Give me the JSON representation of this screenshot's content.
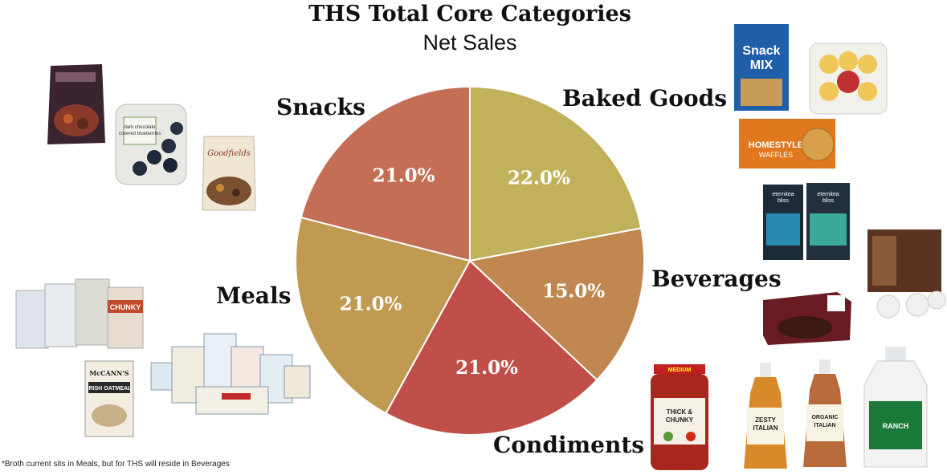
{
  "title": "THS Total Core Categories",
  "subtitle": "Net Sales",
  "footnote": "*Broth current sits in Meals, but for THS will reside in Beverages",
  "chart_data": {
    "type": "pie",
    "title": "THS Total Core Categories",
    "subtitle": "Net Sales",
    "slices": [
      {
        "label": "Baked Goods",
        "value": 22.0,
        "display": "22.0%",
        "color": "#c1b15a"
      },
      {
        "label": "Beverages",
        "value": 15.0,
        "display": "15.0%",
        "color": "#c08750"
      },
      {
        "label": "Condiments",
        "value": 21.0,
        "display": "21.0%",
        "color": "#c14f49"
      },
      {
        "label": "Meals",
        "value": 21.0,
        "display": "21.0%",
        "color": "#bf9a50"
      },
      {
        "label": "Snacks",
        "value": 21.0,
        "display": "21.0%",
        "color": "#c56e56"
      }
    ]
  },
  "product_images": {
    "snacks": [
      "Sam's Choice trail mix bag",
      "dark chocolate covered blueberries tub",
      "Goodfields trail mix bag"
    ],
    "baked_goods": [
      "Snack Mix box",
      "Frosted cookies tray",
      "Homestyle Waffles box"
    ],
    "beverages": [
      "eternitea bliss tea boxes",
      "coffee pod box",
      "coffee k-cups"
    ],
    "condiments": [
      "Thick & Chunky salsa jar",
      "Zesty Italian dressing",
      "Organic Italian dressing",
      "Ranch dressing jug"
    ],
    "meals": [
      "soup cans",
      "McCann's Irish Oatmeal box",
      "instant oatmeal packets"
    ],
    "text": {
      "snack_mix": "Snack MIX",
      "dark_choc": "dark chocolate covered blueberries",
      "goodfields": "Goodfields",
      "homestyle": "HOMESTYLE WAFFLES",
      "tea_brand": "eternitea bliss",
      "salsa_top": "MEDIUM",
      "salsa": "THICK & CHUNKY",
      "zesty": "ZESTY ITALIAN",
      "organic": "ORGANIC ITALIAN",
      "ranch": "RANCH",
      "chunky": "CHUNKY",
      "mccanns": "McCANN'S",
      "oatmeal": "IRISH OATMEAL"
    }
  }
}
